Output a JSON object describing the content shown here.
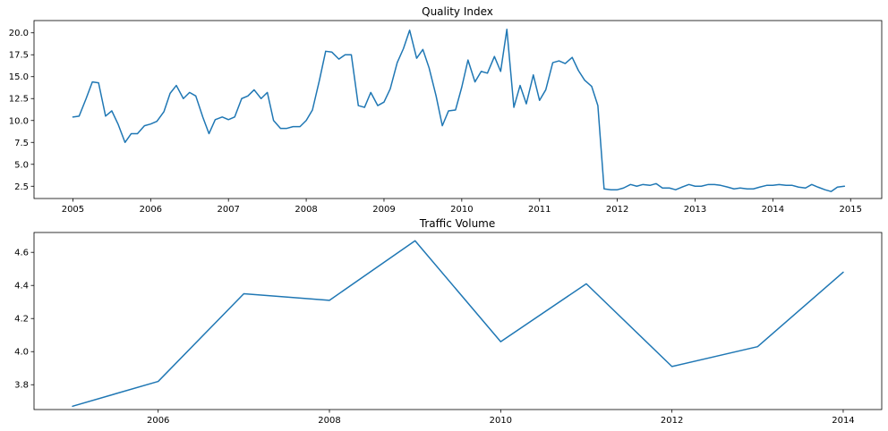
{
  "chart_data": [
    {
      "type": "line",
      "title": "Quality Index",
      "xlabel": "",
      "ylabel": "",
      "xlim": [
        2004.5,
        2015.4
      ],
      "ylim": [
        1.1,
        21.4
      ],
      "x_ticks": [
        2005,
        2006,
        2007,
        2008,
        2009,
        2010,
        2011,
        2012,
        2013,
        2014,
        2015
      ],
      "x_tick_labels": [
        "2005",
        "2006",
        "2007",
        "2008",
        "2009",
        "2010",
        "2011",
        "2012",
        "2013",
        "2014",
        "2015"
      ],
      "y_ticks": [
        2.5,
        5.0,
        7.5,
        10.0,
        12.5,
        15.0,
        17.5,
        20.0
      ],
      "y_tick_labels": [
        "2.5",
        "5.0",
        "7.5",
        "10.0",
        "12.5",
        "15.0",
        "17.5",
        "20.0"
      ],
      "grid": false,
      "series": [
        {
          "color": "#1f77b4",
          "x": [
            2005.0,
            2005.08,
            2005.17,
            2005.25,
            2005.33,
            2005.42,
            2005.5,
            2005.58,
            2005.67,
            2005.75,
            2005.83,
            2005.92,
            2006.0,
            2006.08,
            2006.17,
            2006.25,
            2006.33,
            2006.42,
            2006.5,
            2006.58,
            2006.67,
            2006.75,
            2006.83,
            2006.92,
            2007.0,
            2007.08,
            2007.17,
            2007.25,
            2007.33,
            2007.42,
            2007.5,
            2007.58,
            2007.67,
            2007.75,
            2007.83,
            2007.92,
            2008.0,
            2008.08,
            2008.17,
            2008.25,
            2008.33,
            2008.42,
            2008.5,
            2008.58,
            2008.67,
            2008.75,
            2008.83,
            2008.92,
            2009.0,
            2009.08,
            2009.17,
            2009.25,
            2009.33,
            2009.42,
            2009.5,
            2009.58,
            2009.67,
            2009.75,
            2009.83,
            2009.92,
            2010.0,
            2010.08,
            2010.17,
            2010.25,
            2010.33,
            2010.42,
            2010.5,
            2010.58,
            2010.67,
            2010.75,
            2010.83,
            2010.92,
            2011.0,
            2011.08,
            2011.17,
            2011.25,
            2011.33,
            2011.42,
            2011.5,
            2011.58,
            2011.67,
            2011.75,
            2011.83,
            2011.92,
            2012.0,
            2012.08,
            2012.17,
            2012.25,
            2012.33,
            2012.42,
            2012.5,
            2012.58,
            2012.67,
            2012.75,
            2012.83,
            2012.92,
            2013.0,
            2013.08,
            2013.17,
            2013.25,
            2013.33,
            2013.42,
            2013.5,
            2013.58,
            2013.67,
            2013.75,
            2013.83,
            2013.92,
            2014.0,
            2014.08,
            2014.17,
            2014.25,
            2014.33,
            2014.42,
            2014.5,
            2014.58,
            2014.67,
            2014.75,
            2014.83,
            2014.92
          ],
          "y": [
            10.4,
            10.5,
            12.5,
            14.4,
            14.3,
            10.5,
            11.1,
            9.6,
            7.5,
            8.5,
            8.5,
            9.4,
            9.6,
            9.9,
            11.0,
            13.1,
            14.0,
            12.5,
            13.2,
            12.8,
            10.4,
            8.5,
            10.1,
            10.4,
            10.1,
            10.4,
            12.5,
            12.8,
            13.5,
            12.5,
            13.2,
            10.0,
            9.1,
            9.1,
            9.3,
            9.3,
            10.0,
            11.2,
            14.6,
            17.9,
            17.8,
            17.0,
            17.5,
            17.5,
            11.7,
            11.5,
            13.2,
            11.7,
            12.1,
            13.6,
            16.6,
            18.2,
            20.3,
            17.1,
            18.1,
            16.0,
            12.8,
            9.4,
            11.1,
            11.2,
            13.8,
            16.9,
            14.4,
            15.6,
            15.4,
            17.3,
            15.6,
            20.4,
            11.5,
            14.0,
            11.9,
            15.2,
            12.3,
            13.5,
            16.6,
            16.8,
            16.5,
            17.2,
            15.7,
            14.6,
            13.9,
            11.7,
            2.2,
            2.1,
            2.1,
            2.3,
            2.7,
            2.5,
            2.7,
            2.6,
            2.8,
            2.3,
            2.3,
            2.1,
            2.4,
            2.7,
            2.5,
            2.5,
            2.7,
            2.7,
            2.6,
            2.4,
            2.2,
            2.3,
            2.2,
            2.2,
            2.4,
            2.6,
            2.6,
            2.7,
            2.6,
            2.6,
            2.4,
            2.3,
            2.7,
            2.4,
            2.1,
            1.9,
            2.4,
            2.5
          ]
        }
      ]
    },
    {
      "type": "line",
      "title": "Traffic Volume",
      "xlabel": "",
      "ylabel": "",
      "xlim": [
        2004.55,
        2014.45
      ],
      "ylim": [
        3.65,
        4.72
      ],
      "x_ticks": [
        2006,
        2008,
        2010,
        2012,
        2014
      ],
      "x_tick_labels": [
        "2006",
        "2008",
        "2010",
        "2012",
        "2014"
      ],
      "y_ticks": [
        3.8,
        4.0,
        4.2,
        4.4,
        4.6
      ],
      "y_tick_labels": [
        "3.8",
        "4.0",
        "4.2",
        "4.4",
        "4.6"
      ],
      "grid": false,
      "series": [
        {
          "color": "#1f77b4",
          "x": [
            2005,
            2006,
            2007,
            2008,
            2009,
            2010,
            2011,
            2012,
            2013,
            2014
          ],
          "y": [
            3.67,
            3.82,
            4.35,
            4.31,
            4.67,
            4.06,
            4.41,
            3.91,
            4.03,
            4.48
          ]
        }
      ]
    }
  ]
}
